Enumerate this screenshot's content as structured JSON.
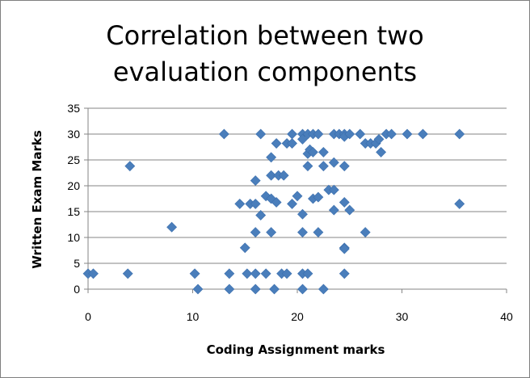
{
  "chart_data": {
    "type": "scatter",
    "title": "Correlation between two evaluation components",
    "title_lines": [
      "Correlation between two",
      "evaluation components"
    ],
    "xlabel": "Coding Assignment marks",
    "ylabel": "Written Exam Marks",
    "xlim": [
      0,
      40
    ],
    "ylim": [
      0,
      35
    ],
    "x_ticks": [
      0,
      10,
      20,
      30,
      40
    ],
    "y_ticks": [
      0,
      5,
      10,
      15,
      20,
      25,
      30,
      35
    ],
    "grid": "horizontal",
    "legend": "none",
    "marker": "diamond",
    "color": "#4a7ebb",
    "points": [
      [
        0,
        3
      ],
      [
        0.5,
        3
      ],
      [
        4,
        23.8
      ],
      [
        3.8,
        3
      ],
      [
        8,
        12
      ],
      [
        10.2,
        3
      ],
      [
        10.5,
        0
      ],
      [
        13,
        30
      ],
      [
        13.5,
        3
      ],
      [
        13.5,
        0
      ],
      [
        14.5,
        16.5
      ],
      [
        15,
        8
      ],
      [
        15.2,
        3
      ],
      [
        15.5,
        16.5
      ],
      [
        16,
        21
      ],
      [
        16,
        16.5
      ],
      [
        16,
        11
      ],
      [
        16,
        3
      ],
      [
        16,
        0
      ],
      [
        16.5,
        30
      ],
      [
        16.5,
        14.3
      ],
      [
        17,
        18
      ],
      [
        17,
        3
      ],
      [
        17.5,
        25.5
      ],
      [
        17.5,
        22
      ],
      [
        17.5,
        17.5
      ],
      [
        17.5,
        11
      ],
      [
        17.8,
        0
      ],
      [
        18,
        28.2
      ],
      [
        18,
        16.8
      ],
      [
        18.2,
        22
      ],
      [
        18.5,
        3
      ],
      [
        18.7,
        22
      ],
      [
        19,
        28.2
      ],
      [
        19,
        3
      ],
      [
        19.5,
        30
      ],
      [
        19.5,
        28.2
      ],
      [
        19.5,
        16.5
      ],
      [
        20,
        18
      ],
      [
        20.5,
        30
      ],
      [
        20.5,
        29
      ],
      [
        20.5,
        14.5
      ],
      [
        20.5,
        11
      ],
      [
        20.5,
        3
      ],
      [
        20.5,
        0
      ],
      [
        21,
        30
      ],
      [
        21,
        26.2
      ],
      [
        21,
        23.8
      ],
      [
        21,
        3
      ],
      [
        21.2,
        27
      ],
      [
        21.5,
        26.5
      ],
      [
        21.5,
        17.5
      ],
      [
        21.5,
        30
      ],
      [
        22,
        30
      ],
      [
        22,
        17.8
      ],
      [
        22,
        11
      ],
      [
        22.5,
        26.5
      ],
      [
        22.5,
        23.8
      ],
      [
        22.5,
        0
      ],
      [
        23,
        19.2
      ],
      [
        23.5,
        30
      ],
      [
        23.5,
        24.5
      ],
      [
        23.5,
        19.2
      ],
      [
        23.5,
        15.3
      ],
      [
        24,
        30
      ],
      [
        24.5,
        30
      ],
      [
        24.5,
        29.5
      ],
      [
        24.5,
        23.8
      ],
      [
        24.5,
        16.8
      ],
      [
        24.5,
        8
      ],
      [
        24.5,
        7.8
      ],
      [
        24.5,
        3
      ],
      [
        25,
        30
      ],
      [
        25,
        15.3
      ],
      [
        26,
        30
      ],
      [
        26.5,
        28.2
      ],
      [
        26.5,
        11
      ],
      [
        27,
        28.2
      ],
      [
        27.5,
        28.2
      ],
      [
        27.8,
        29
      ],
      [
        28,
        26.5
      ],
      [
        28.5,
        30
      ],
      [
        29,
        30
      ],
      [
        30.5,
        30
      ],
      [
        32,
        30
      ],
      [
        35.5,
        30
      ],
      [
        35.5,
        16.5
      ]
    ]
  }
}
